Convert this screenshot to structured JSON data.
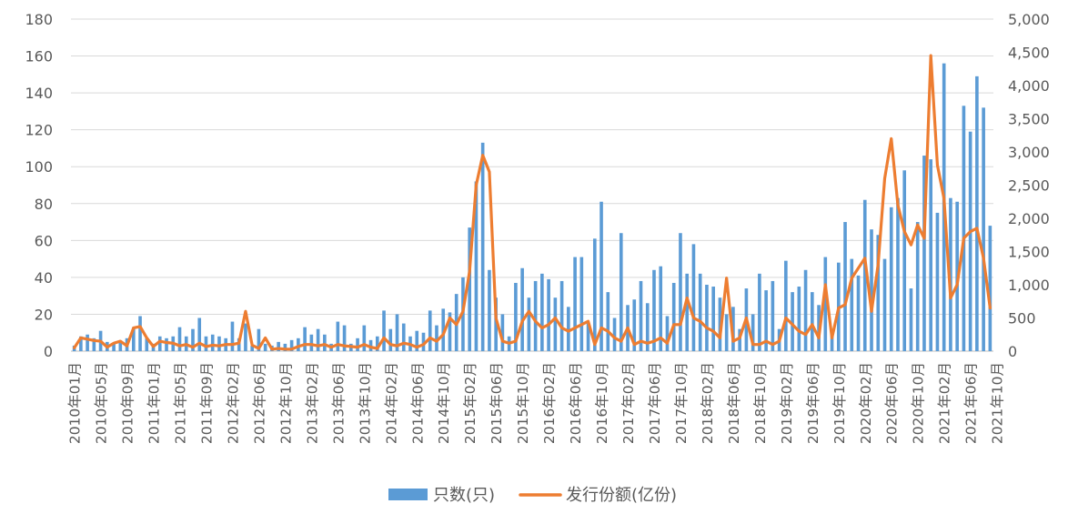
{
  "chart_data": {
    "type": "bar+line",
    "title": "",
    "legend_position": "bottom",
    "y_left": {
      "min": 0,
      "max": 180,
      "ticks": [
        "0",
        "20",
        "40",
        "60",
        "80",
        "100",
        "120",
        "140",
        "160",
        "180"
      ]
    },
    "y_right": {
      "min": 0,
      "max": 5000,
      "ticks": [
        "0",
        "500",
        "1,000",
        "1,500",
        "2,000",
        "2,500",
        "3,000",
        "3,500",
        "4,000",
        "4,500",
        "5,000"
      ]
    },
    "x_tick_labels": [
      "2010年01月",
      "2010年05月",
      "2010年09月",
      "2011年01月",
      "2011年05月",
      "2011年09月",
      "2012年02月",
      "2012年06月",
      "2012年10月",
      "2013年02月",
      "2013年06月",
      "2013年10月",
      "2014年02月",
      "2014年06月",
      "2014年10月",
      "2015年02月",
      "2015年06月",
      "2015年10月",
      "2016年02月",
      "2016年06月",
      "2016年10月",
      "2017年02月",
      "2017年06月",
      "2017年10月",
      "2018年02月",
      "2018年06月",
      "2018年10月",
      "2019年02月",
      "2019年06月",
      "2019年10月",
      "2020年02月",
      "2020年06月",
      "2020年10月",
      "2021年02月",
      "2021年06月",
      "2021年10月"
    ],
    "series": [
      {
        "name": "只数(只)",
        "type": "bar",
        "axis": "left",
        "color": "#5b9bd5",
        "values": [
          3,
          8,
          9,
          7,
          11,
          5,
          4,
          5,
          7,
          13,
          19,
          7,
          4,
          8,
          7,
          8,
          13,
          8,
          12,
          18,
          8,
          9,
          8,
          7,
          16,
          7,
          15,
          3,
          12,
          4,
          3,
          5,
          4,
          6,
          7,
          13,
          9,
          12,
          9,
          4,
          16,
          14,
          4,
          7,
          14,
          6,
          8,
          22,
          12,
          20,
          15,
          8,
          11,
          10,
          22,
          14,
          23,
          21,
          31,
          40,
          67,
          92,
          113,
          44,
          29,
          20,
          8,
          37,
          45,
          29,
          38,
          42,
          39,
          29,
          38,
          24,
          51,
          51,
          15,
          61,
          81,
          32,
          18,
          64,
          25,
          28,
          38,
          26,
          44,
          46,
          19,
          37,
          64,
          42,
          58,
          42,
          36,
          35,
          29,
          20,
          24,
          12,
          34,
          20,
          42,
          33,
          38,
          12,
          49,
          32,
          35,
          44,
          32,
          25,
          51,
          12,
          48,
          70,
          50,
          41,
          82,
          66,
          63,
          50,
          78,
          83,
          98,
          34,
          70,
          106,
          104,
          75,
          156,
          83,
          81,
          133,
          119,
          149,
          132,
          68
        ]
      },
      {
        "name": "发行份额(亿份)",
        "type": "line",
        "axis": "right",
        "color": "#ed7d31",
        "values": [
          50,
          200,
          180,
          160,
          150,
          60,
          120,
          150,
          80,
          350,
          370,
          200,
          70,
          150,
          130,
          120,
          80,
          100,
          60,
          120,
          70,
          90,
          80,
          100,
          100,
          120,
          600,
          90,
          40,
          200,
          30,
          40,
          30,
          30,
          70,
          100,
          100,
          80,
          100,
          60,
          100,
          80,
          70,
          60,
          100,
          60,
          40,
          200,
          100,
          80,
          120,
          100,
          60,
          100,
          200,
          150,
          250,
          500,
          400,
          600,
          1200,
          2500,
          2950,
          2700,
          500,
          150,
          120,
          150,
          450,
          600,
          450,
          350,
          400,
          500,
          350,
          300,
          350,
          400,
          450,
          100,
          350,
          300,
          200,
          150,
          350,
          100,
          150,
          120,
          150,
          200,
          120,
          400,
          400,
          800,
          500,
          450,
          350,
          300,
          200,
          1100,
          150,
          200,
          500,
          100,
          100,
          150,
          100,
          150,
          500,
          400,
          300,
          250,
          400,
          200,
          1000,
          200,
          650,
          700,
          1100,
          1250,
          1400,
          600,
          1300,
          2600,
          3200,
          2200,
          1800,
          1600,
          1900,
          1700,
          4450,
          2800,
          2300,
          800,
          1000,
          1700,
          1800,
          1850,
          1400,
          650
        ]
      }
    ]
  }
}
